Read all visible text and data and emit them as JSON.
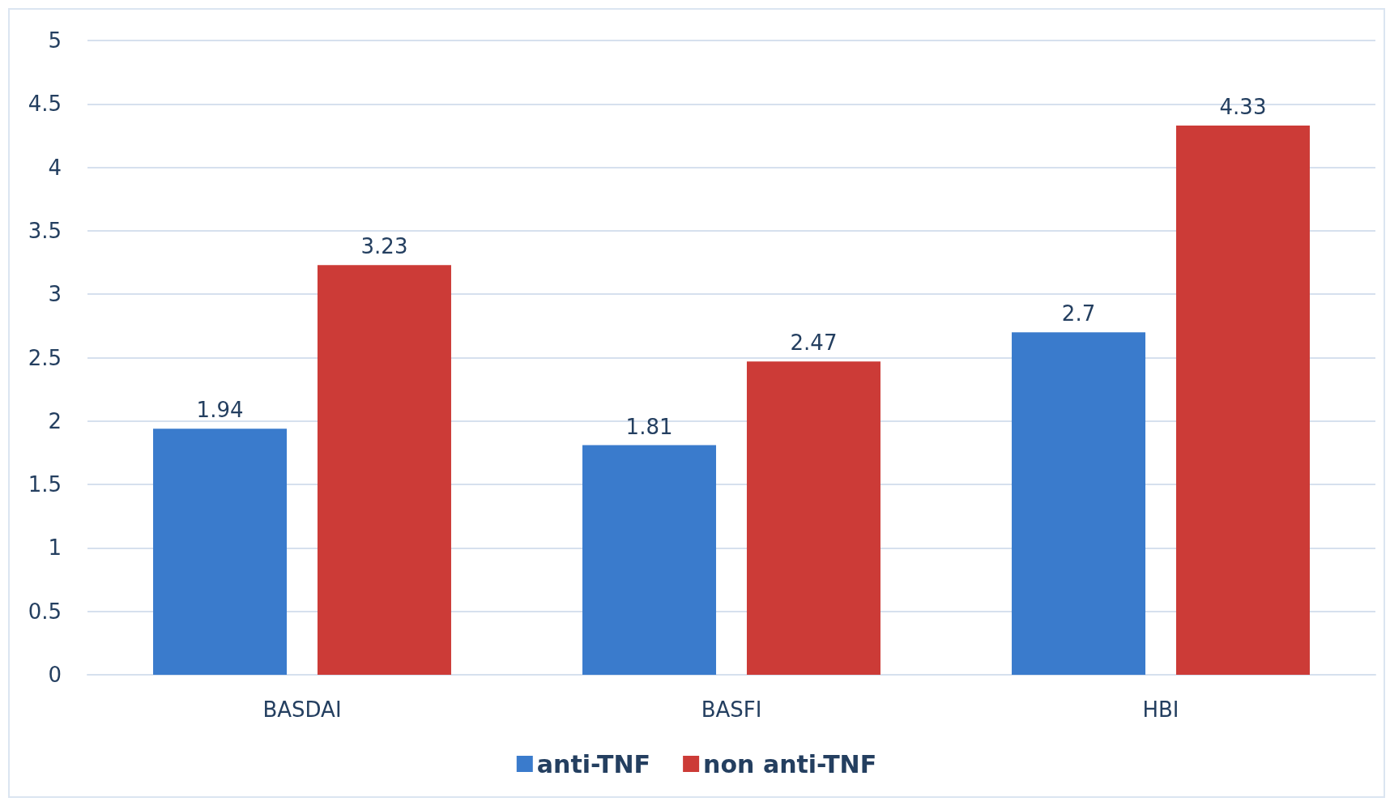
{
  "chart_data": {
    "type": "bar",
    "categories": [
      "BASDAI",
      "BASFI",
      "HBI"
    ],
    "series": [
      {
        "name": "anti-TNF",
        "color": "#3a7bcc",
        "values": [
          1.94,
          1.81,
          2.7
        ]
      },
      {
        "name": "non anti-TNF",
        "color": "#cc3b37",
        "values": [
          3.23,
          2.47,
          4.33
        ]
      }
    ],
    "ylim": [
      0,
      5
    ],
    "yticks": [
      0,
      0.5,
      1,
      1.5,
      2,
      2.5,
      3,
      3.5,
      4,
      4.5,
      5
    ],
    "grid": "y",
    "legend": "bottom",
    "data_labels": true
  }
}
